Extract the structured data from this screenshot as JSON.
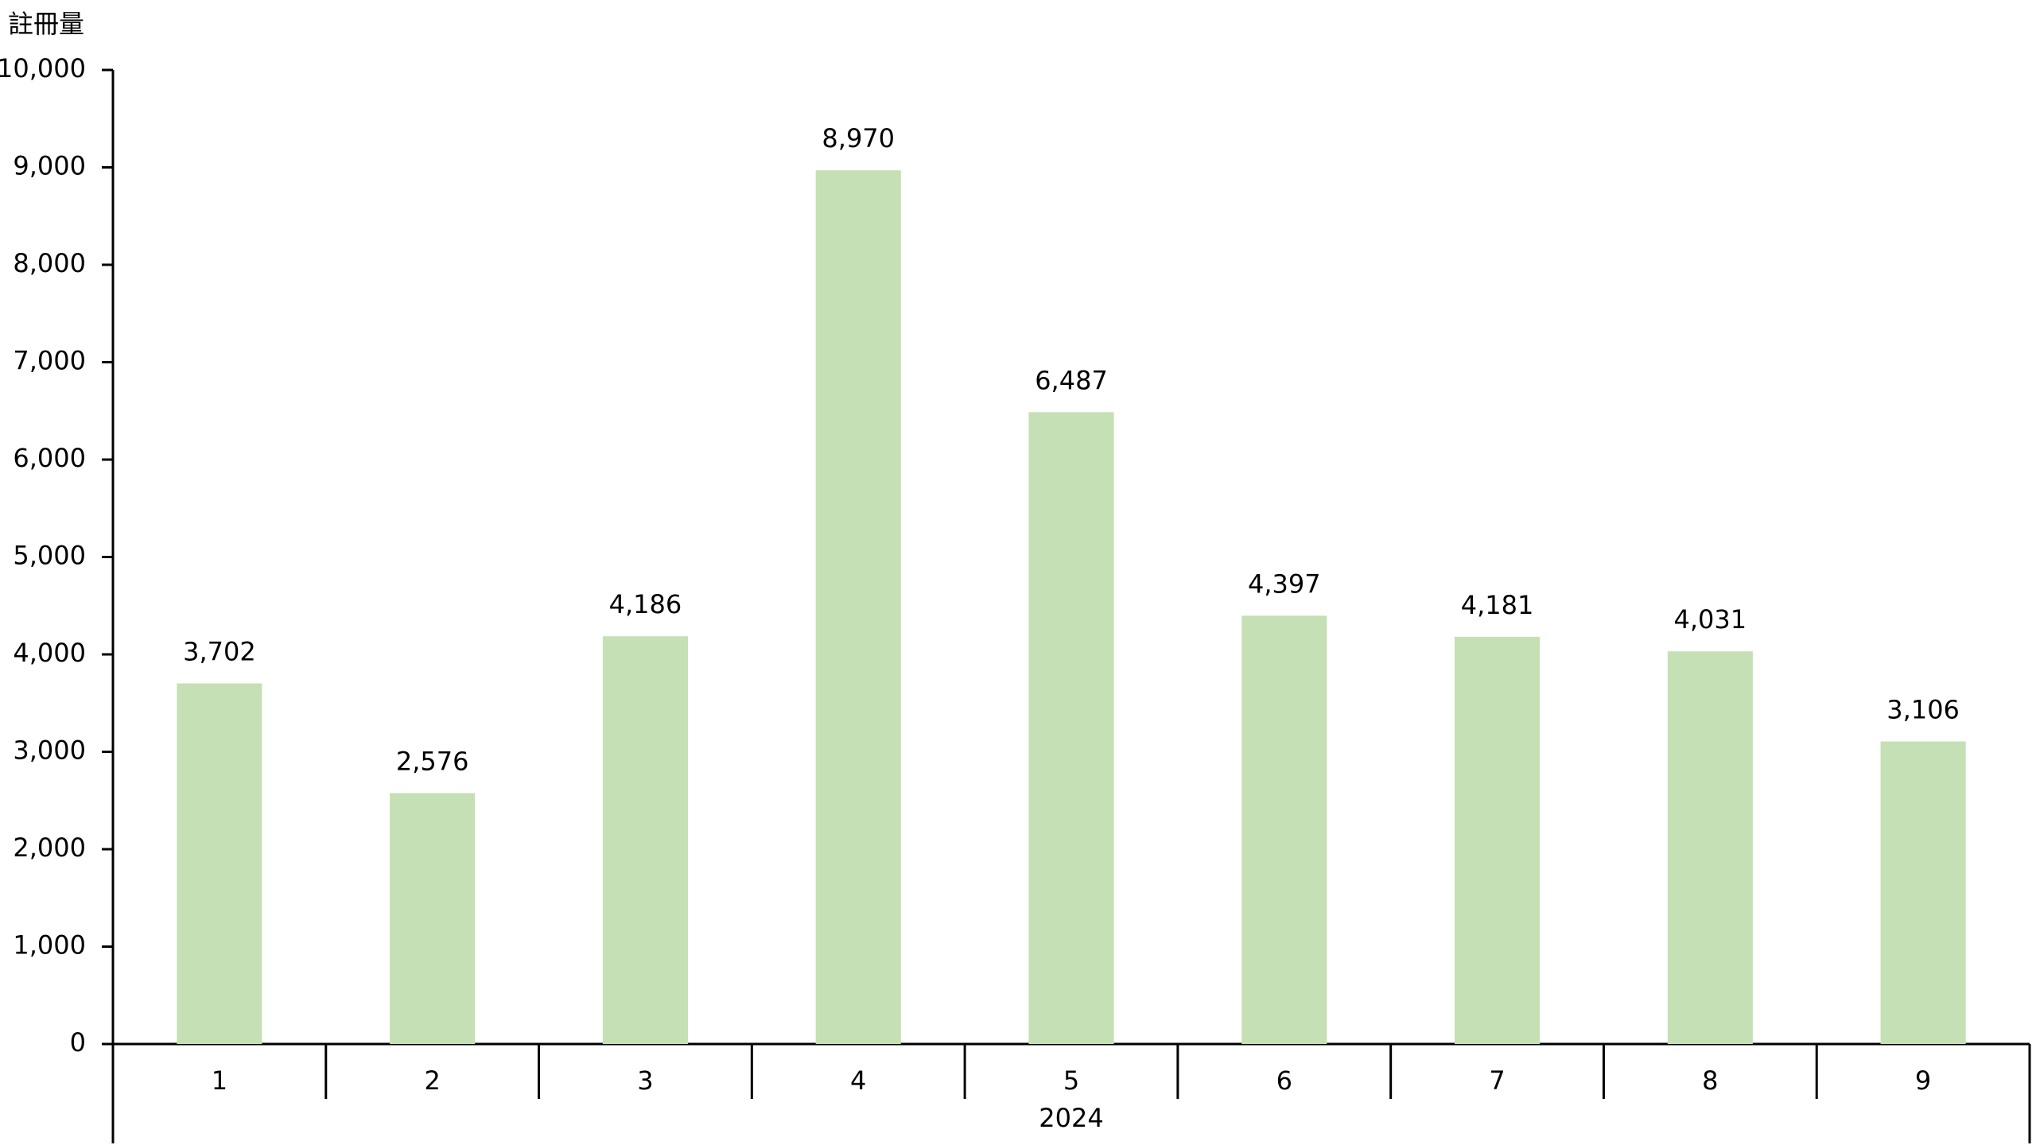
{
  "chart_data": {
    "type": "bar",
    "y_label": "註冊量",
    "group_label": "2024",
    "categories": [
      "1",
      "2",
      "3",
      "4",
      "5",
      "6",
      "7",
      "8",
      "9"
    ],
    "values": [
      3702,
      2576,
      4186,
      8970,
      6487,
      4397,
      4181,
      4031,
      3106
    ],
    "value_labels": [
      "3,702",
      "2,576",
      "4,186",
      "8,970",
      "6,487",
      "4,397",
      "4,181",
      "4,031",
      "3,106"
    ],
    "color": "#c5e0b4",
    "ylim": [
      0,
      10000
    ],
    "yticks": [
      0,
      {
        "value": 1000,
        "label": "1,000"
      },
      {
        "value": 2000,
        "label": "2,000"
      },
      {
        "value": 3000,
        "label": "3,000"
      },
      {
        "value": 4000,
        "label": "4,000"
      },
      {
        "value": 5000,
        "label": "5,000"
      },
      {
        "value": 6000,
        "label": "6,000"
      },
      {
        "value": 7000,
        "label": "7,000"
      },
      {
        "value": 8000,
        "label": "8,000"
      },
      {
        "value": 9000,
        "label": "9,000"
      },
      {
        "value": 10000,
        "label": "10,000"
      }
    ]
  }
}
